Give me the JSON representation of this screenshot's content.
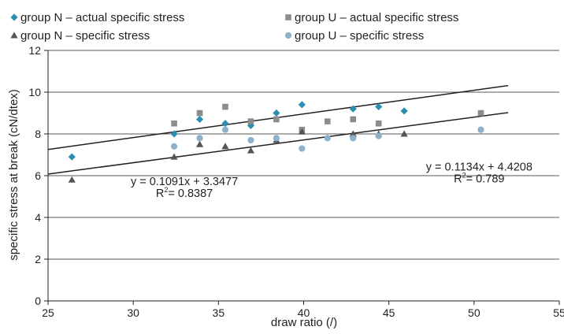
{
  "chart_data": {
    "type": "scatter",
    "xlabel": "draw ratio (/)",
    "ylabel": "specific stress at break (cN/dtex)",
    "xlim": [
      25,
      55
    ],
    "ylim": [
      0,
      12
    ],
    "xticks": [
      25,
      30,
      35,
      40,
      45,
      50,
      55
    ],
    "yticks": [
      0,
      2,
      4,
      6,
      8,
      10,
      12
    ],
    "grid": "horizontal",
    "legend_position": "top",
    "series": [
      {
        "name": "group N – actual specific stress",
        "marker": "diamond",
        "color": "#2b8fb0",
        "points": [
          [
            26.4,
            6.9
          ],
          [
            32.4,
            8.0
          ],
          [
            33.9,
            8.7
          ],
          [
            35.4,
            8.5
          ],
          [
            36.9,
            8.4
          ],
          [
            38.4,
            9.0
          ],
          [
            39.9,
            9.4
          ],
          [
            42.9,
            9.2
          ],
          [
            44.4,
            9.3
          ],
          [
            45.9,
            9.1
          ]
        ]
      },
      {
        "name": "group U – actual specific stress",
        "marker": "square",
        "color": "#8c8c8c",
        "points": [
          [
            32.4,
            8.5
          ],
          [
            33.9,
            9.0
          ],
          [
            35.4,
            9.3
          ],
          [
            36.9,
            8.6
          ],
          [
            38.4,
            8.7
          ],
          [
            39.9,
            8.2
          ],
          [
            41.4,
            8.6
          ],
          [
            42.9,
            8.7
          ],
          [
            44.4,
            8.5
          ],
          [
            50.4,
            9.0
          ]
        ]
      },
      {
        "name": "group N – specific stress",
        "marker": "triangle",
        "color": "#545456",
        "points": [
          [
            26.4,
            5.8
          ],
          [
            32.4,
            6.9
          ],
          [
            33.9,
            7.5
          ],
          [
            35.4,
            7.4
          ],
          [
            36.9,
            7.2
          ],
          [
            38.4,
            7.7
          ],
          [
            39.9,
            8.1
          ],
          [
            42.9,
            8.0
          ],
          [
            44.4,
            8.0
          ],
          [
            45.9,
            8.0
          ]
        ]
      },
      {
        "name": "group U – specific stress",
        "marker": "circle",
        "color": "#8db1cb",
        "points": [
          [
            32.4,
            7.4
          ],
          [
            33.9,
            7.8
          ],
          [
            35.4,
            8.2
          ],
          [
            36.9,
            7.7
          ],
          [
            38.4,
            7.8
          ],
          [
            39.9,
            7.3
          ],
          [
            41.4,
            7.8
          ],
          [
            42.9,
            7.8
          ],
          [
            44.4,
            7.9
          ],
          [
            50.4,
            8.2
          ]
        ]
      }
    ],
    "trendlines": [
      {
        "slope": 0.1091,
        "intercept": 3.3477,
        "x_range": [
          25,
          52
        ],
        "equation": "y = 0.1091x + 3.3477",
        "r2_prefix": "R",
        "r2_suffix": "= 0.8387",
        "label_anchor": [
          33.0,
          5.55
        ]
      },
      {
        "slope": 0.1134,
        "intercept": 4.4208,
        "x_range": [
          25,
          52
        ],
        "equation": "y = 0.1134x + 4.4208",
        "r2_prefix": "R",
        "r2_suffix": "= 0.789",
        "label_anchor": [
          50.3,
          6.25
        ]
      }
    ]
  }
}
